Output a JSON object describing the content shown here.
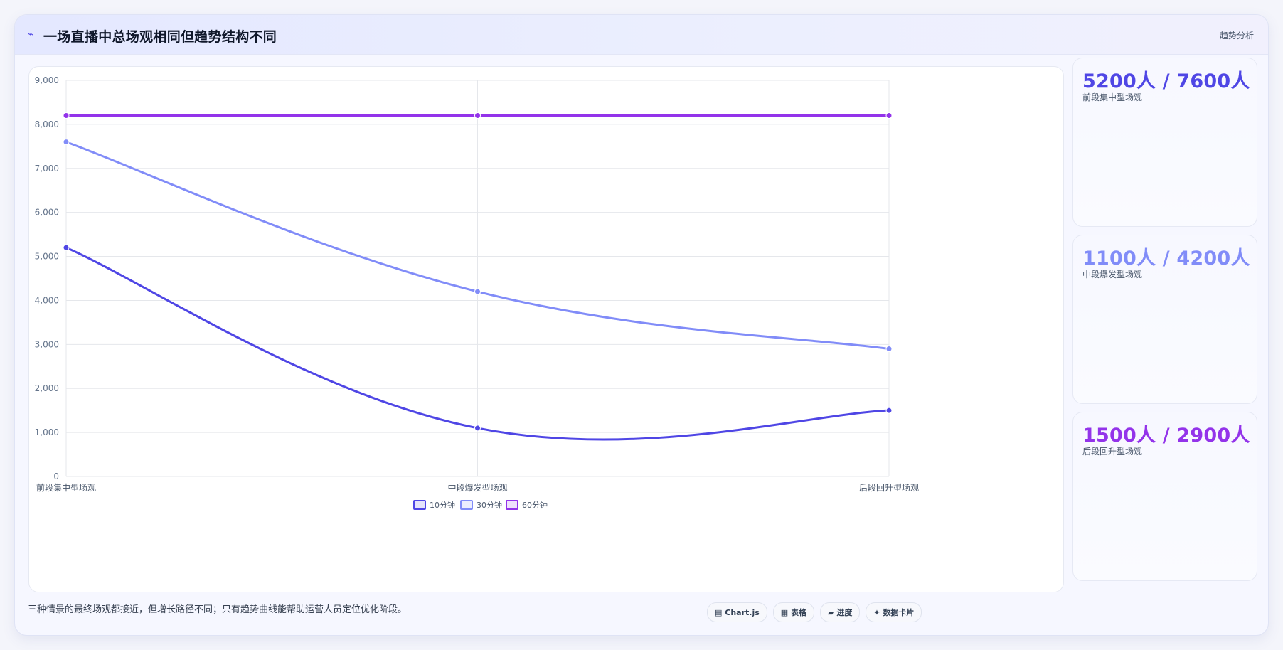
{
  "header": {
    "icon": "trend-icon",
    "title": "一场直播中总场观相同但趋势结构不同",
    "tag": "趋势分析"
  },
  "chart_data": {
    "type": "line",
    "categories": [
      "前段集中型场观",
      "中段爆发型场观",
      "后段回升型场观"
    ],
    "series": [
      {
        "name": "10分钟",
        "values": [
          5200,
          1100,
          1500
        ],
        "color": "#4f46e5"
      },
      {
        "name": "30分钟",
        "values": [
          7600,
          4200,
          2900
        ],
        "color": "#818cf8"
      },
      {
        "name": "60分钟",
        "values": [
          8200,
          8200,
          8200
        ],
        "color": "#9333ea"
      }
    ],
    "ylim": [
      0,
      9000
    ],
    "yticks": [
      "0",
      "1,000",
      "2,000",
      "3,000",
      "4,000",
      "5,000",
      "6,000",
      "7,000",
      "8,000",
      "9,000"
    ],
    "grid": true,
    "legend": "bottom"
  },
  "stats": [
    {
      "value": "5200人 / 7600人",
      "label": "前段集中型场观",
      "color": "#4f46e5"
    },
    {
      "value": "1100人 / 4200人",
      "label": "中段爆发型场观",
      "color": "#818cf8"
    },
    {
      "value": "1500人 / 2900人",
      "label": "后段回升型场观",
      "color": "#9333ea"
    }
  ],
  "footnote": "三种情景的最终场观都接近，但增长路径不同；只有趋势曲线能帮助运营人员定位优化阶段。",
  "buttons": [
    {
      "icon": "chart-icon",
      "glyph": "▤",
      "label": "Chart.js"
    },
    {
      "icon": "table-icon",
      "glyph": "▦",
      "label": "表格"
    },
    {
      "icon": "progress-icon",
      "glyph": "▰",
      "label": "进度"
    },
    {
      "icon": "card-icon",
      "glyph": "✦",
      "label": "数据卡片"
    }
  ]
}
